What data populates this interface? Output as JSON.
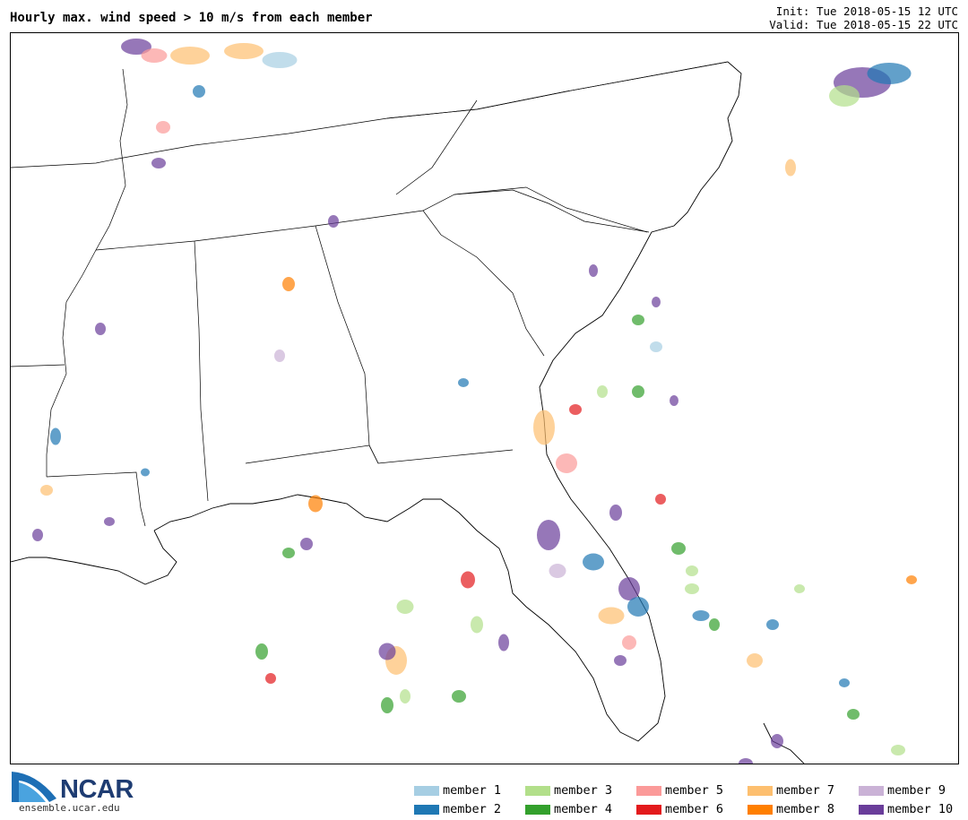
{
  "header": {
    "title": "Hourly max. wind speed > 10 m/s from each member",
    "init": "Init: Tue 2018-05-15 12 UTC",
    "valid": "Valid: Tue 2018-05-15 22 UTC"
  },
  "logo": {
    "name": "NCAR",
    "url": "ensemble.ucar.edu"
  },
  "legend": [
    {
      "label": "member 1",
      "color": "#a6cee3"
    },
    {
      "label": "member 2",
      "color": "#1f78b4"
    },
    {
      "label": "member 3",
      "color": "#b2df8a"
    },
    {
      "label": "member 4",
      "color": "#33a02c"
    },
    {
      "label": "member 5",
      "color": "#fb9a99"
    },
    {
      "label": "member 6",
      "color": "#e31a1c"
    },
    {
      "label": "member 7",
      "color": "#fdbf6f"
    },
    {
      "label": "member 8",
      "color": "#ff7f00"
    },
    {
      "label": "member 9",
      "color": "#cab2d6"
    },
    {
      "label": "member 10",
      "color": "#6a3d9a"
    }
  ]
}
